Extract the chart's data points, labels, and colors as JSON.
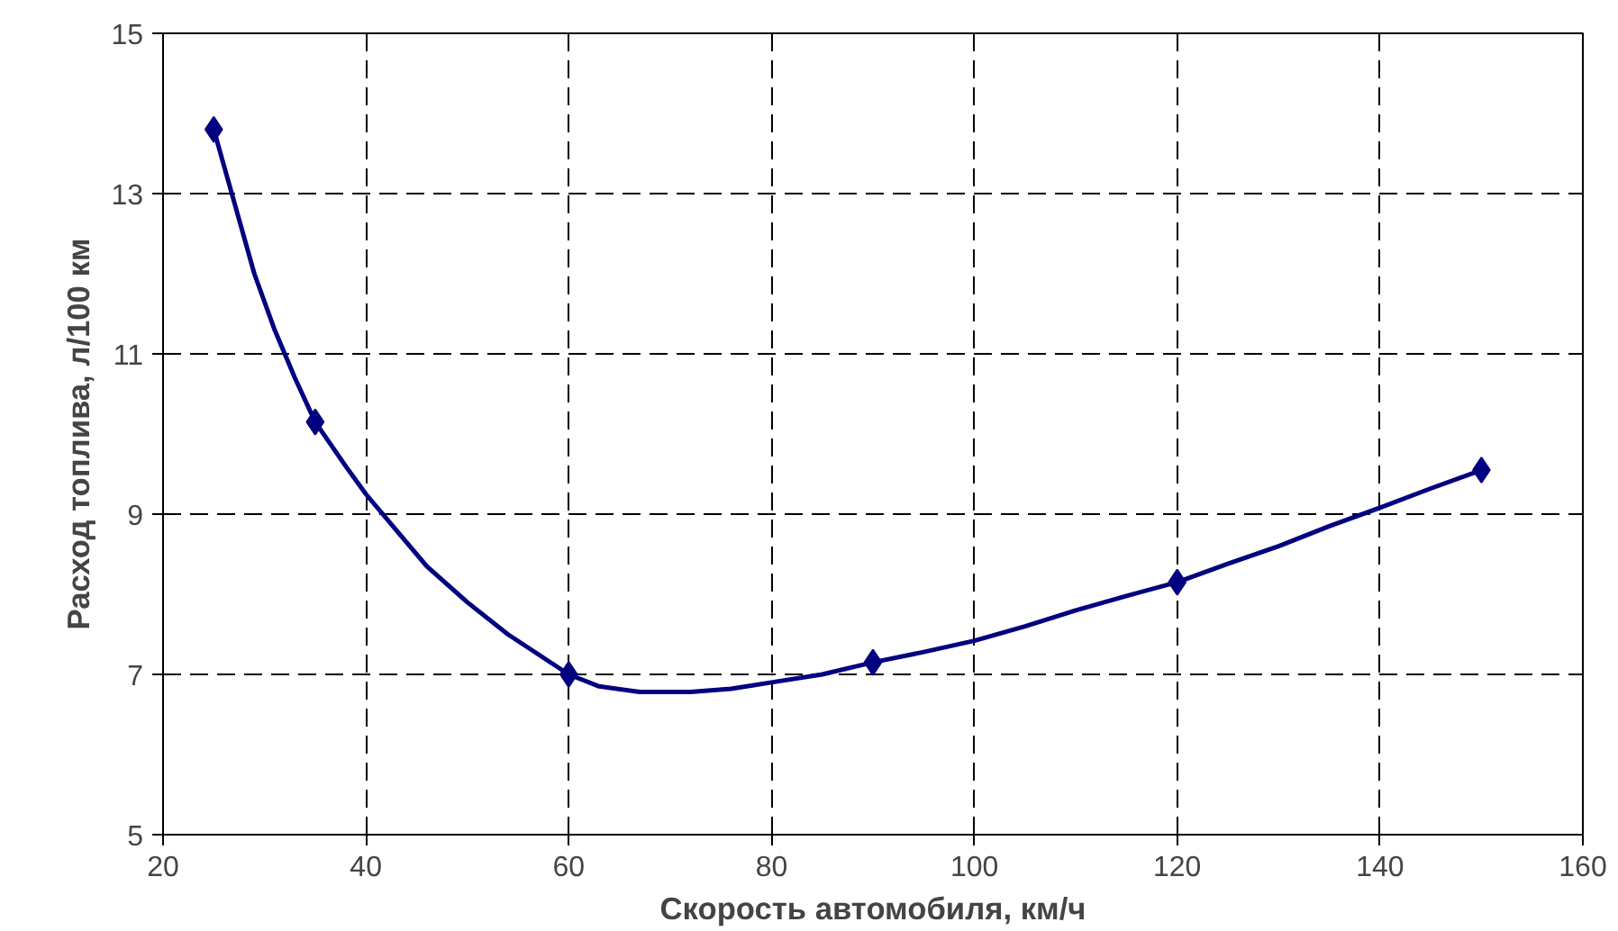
{
  "chart_data": {
    "type": "line",
    "xlabel": "Скорость автомобиля, км/ч",
    "ylabel": "Расход топлива, л/100 км",
    "series": [
      {
        "color": "#000080",
        "marker": "none",
        "x": [
          25,
          27,
          29,
          31,
          33,
          35,
          38,
          40,
          43,
          46,
          50,
          54,
          57,
          60,
          63,
          67,
          72,
          76,
          80,
          85,
          90,
          95,
          100,
          105,
          110,
          115,
          120,
          125,
          130,
          135,
          140,
          145,
          150
        ],
        "values": [
          13.8,
          12.9,
          12.0,
          11.3,
          10.7,
          10.15,
          9.6,
          9.25,
          8.8,
          8.35,
          7.9,
          7.5,
          7.25,
          7.0,
          6.85,
          6.78,
          6.78,
          6.82,
          6.9,
          7.0,
          7.15,
          7.28,
          7.42,
          7.6,
          7.8,
          7.98,
          8.15,
          8.38,
          8.6,
          8.85,
          9.08,
          9.32,
          9.55
        ]
      },
      {
        "type": "scatter",
        "marker": "diamond",
        "color": "#000080",
        "x": [
          25,
          35,
          60,
          90,
          120,
          150
        ],
        "values": [
          13.8,
          10.15,
          7.0,
          7.15,
          8.15,
          9.55
        ]
      }
    ],
    "xlim": [
      20,
      160
    ],
    "xticks": [
      20,
      40,
      60,
      80,
      100,
      120,
      140,
      160
    ],
    "ylim": [
      5,
      15
    ],
    "yticks": [
      5,
      7,
      9,
      11,
      13,
      15
    ],
    "grid": true,
    "line_style": "solid"
  }
}
